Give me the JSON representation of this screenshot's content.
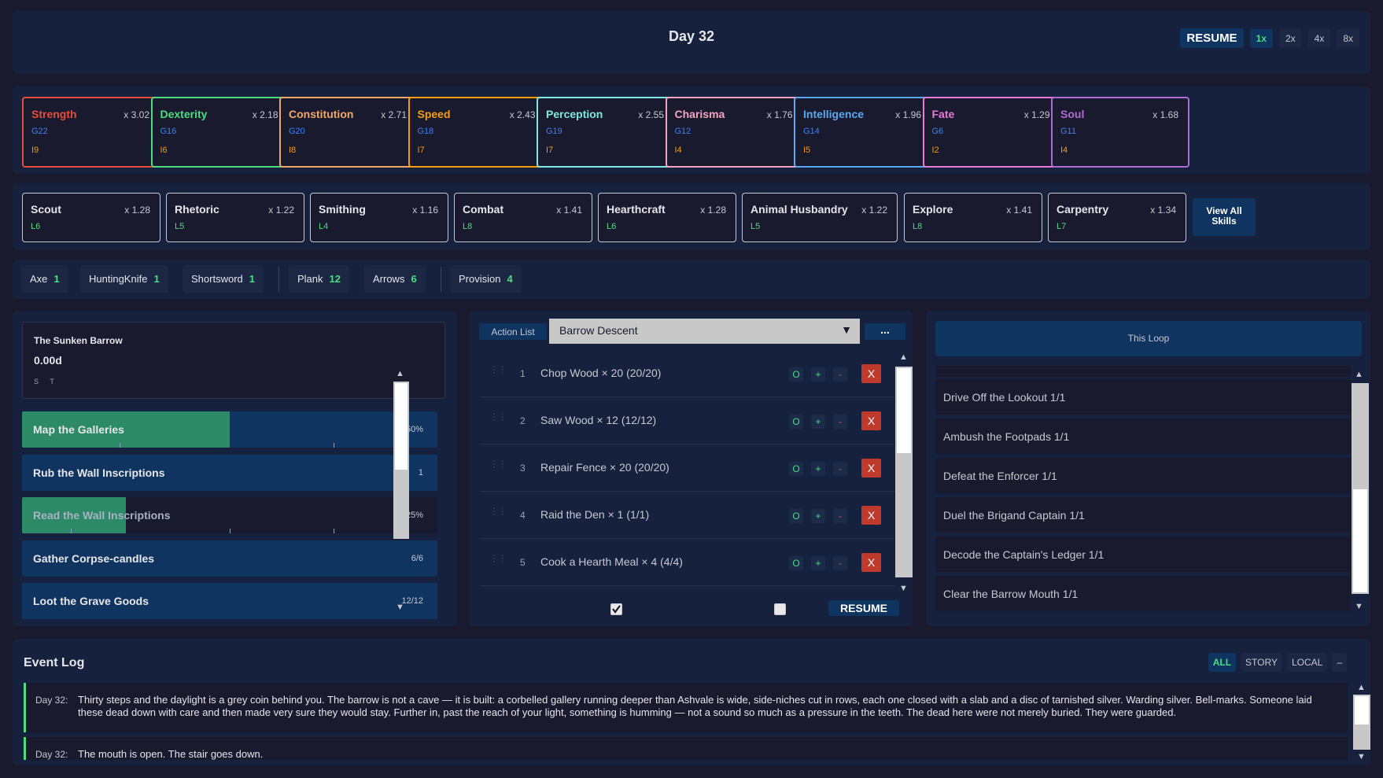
{
  "header": {
    "day": "Day 32",
    "resume_label": "RESUME",
    "speeds": [
      "1x",
      "2x",
      "4x",
      "8x"
    ],
    "active_speed": "1x"
  },
  "stats": [
    {
      "name": "Strength",
      "mult": "x 3.02",
      "g": "G22",
      "i": "I9",
      "color": "#e74c3c"
    },
    {
      "name": "Dexterity",
      "mult": "x 2.18",
      "g": "G16",
      "i": "I6",
      "color": "#4ade80"
    },
    {
      "name": "Constitution",
      "mult": "x 2.71",
      "g": "G20",
      "i": "I8",
      "color": "#f0a868"
    },
    {
      "name": "Speed",
      "mult": "x 2.43",
      "g": "G18",
      "i": "I7",
      "color": "#f59e0b"
    },
    {
      "name": "Perception",
      "mult": "x 2.55",
      "g": "G19",
      "i": "I7",
      "color": "#7ee8e0"
    },
    {
      "name": "Charisma",
      "mult": "x 1.76",
      "g": "G12",
      "i": "I4",
      "color": "#f4a4c0"
    },
    {
      "name": "Intelligence",
      "mult": "x 1.96",
      "g": "G14",
      "i": "I5",
      "color": "#5aa9f0"
    },
    {
      "name": "Fate",
      "mult": "x 1.29",
      "g": "G6",
      "i": "I2",
      "color": "#e87ad6"
    },
    {
      "name": "Soul",
      "mult": "x 1.68",
      "g": "G11",
      "i": "I4",
      "color": "#b36bd4"
    }
  ],
  "skills": [
    {
      "name": "Scout",
      "mult": "x 1.28",
      "level": "L6"
    },
    {
      "name": "Rhetoric",
      "mult": "x 1.22",
      "level": "L5"
    },
    {
      "name": "Smithing",
      "mult": "x 1.16",
      "level": "L4"
    },
    {
      "name": "Combat",
      "mult": "x 1.41",
      "level": "L8"
    },
    {
      "name": "Hearthcraft",
      "mult": "x 1.28",
      "level": "L6"
    },
    {
      "name": "Animal Husbandry",
      "mult": "x 1.22",
      "level": "L5"
    },
    {
      "name": "Explore",
      "mult": "x 1.41",
      "level": "L8"
    },
    {
      "name": "Carpentry",
      "mult": "x 1.34",
      "level": "L7"
    }
  ],
  "view_all_skills_label": "View All Skills",
  "inventory": [
    {
      "name": "Axe",
      "count": "1"
    },
    {
      "name": "HuntingKnife",
      "count": "1"
    },
    {
      "name": "Shortsword",
      "count": "1"
    },
    {
      "name": "Plank",
      "count": "12"
    },
    {
      "name": "Arrows",
      "count": "6"
    },
    {
      "name": "Provision",
      "count": "4"
    }
  ],
  "zone": {
    "name": "The Sunken Barrow",
    "value": "0.00d",
    "flags": "S T",
    "progress": [
      {
        "label": "Map the Galleries",
        "value": "50%",
        "fill": 0.5
      },
      {
        "label": "Rub the Wall Inscriptions",
        "value": "1",
        "fill": 0
      },
      {
        "label": "Read the Wall Inscriptions",
        "value": "25%",
        "fill": 0.25
      },
      {
        "label": "Gather Corpse-candles",
        "value": "6/6",
        "fill": 0
      },
      {
        "label": "Loot the Grave Goods",
        "value": "12/12",
        "fill": 0
      }
    ]
  },
  "action_list": {
    "tab_label": "Action List",
    "selected_list": "Barrow Descent",
    "more_label": "...",
    "buttons": {
      "o": "O",
      "plus": "+",
      "minus": "-",
      "delete": "X"
    },
    "actions": [
      {
        "num": "1",
        "label": "Chop Wood × 20 (20/20)"
      },
      {
        "num": "2",
        "label": "Saw Wood × 12 (12/12)"
      },
      {
        "num": "3",
        "label": "Repair Fence × 20 (20/20)"
      },
      {
        "num": "4",
        "label": "Raid the Den × 1 (1/1)"
      },
      {
        "num": "5",
        "label": "Cook a Hearth Meal × 4 (4/4)"
      }
    ],
    "footer_resume": "RESUME"
  },
  "loop": {
    "tab_label": "This Loop",
    "items": [
      "Drive Off the Lookout 1/1",
      "Ambush the Footpads 1/1",
      "Defeat the Enforcer 1/1",
      "Duel the Brigand Captain 1/1",
      "Decode the Captain's Ledger 1/1",
      "Clear the Barrow Mouth 1/1"
    ]
  },
  "event_log": {
    "title": "Event Log",
    "filters": [
      "ALL",
      "STORY",
      "LOCAL",
      "–"
    ],
    "active_filter": "ALL",
    "entries": [
      {
        "day": "Day 32:",
        "text": "Thirty steps and the daylight is a grey coin behind you. The barrow is not a cave — it is built: a corbelled gallery running deeper than Ashvale is wide, side-niches cut in rows, each one closed with a slab and a disc of tarnished silver. Warding silver. Bell-marks. Someone laid these dead down with care and then made very sure they would stay. Further in, past the reach of your light, something is humming — not a sound so much as a pressure in the teeth. The dead here were not merely buried. They were guarded."
      },
      {
        "day": "Day 32:",
        "text": "The mouth is open. The stair goes down."
      }
    ]
  }
}
